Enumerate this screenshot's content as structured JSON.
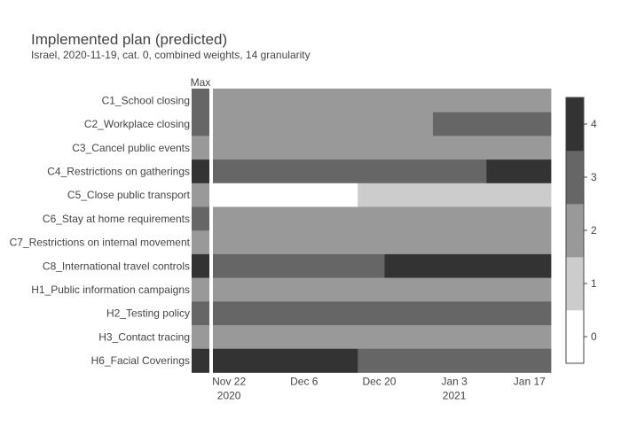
{
  "chart_data": {
    "type": "heatmap",
    "title": "Implemented plan (predicted)",
    "subtitle": "Israel, 2020-11-19, cat. 0, combined weights, 14 granularity",
    "max_column_label": "Max",
    "x_start": "2020-11-19",
    "x_end": "2021-01-21",
    "x_ticks": [
      {
        "date": "2020-11-22",
        "label": "Nov 22",
        "sublabel": "2020"
      },
      {
        "date": "2020-12-06",
        "label": "Dec 6",
        "sublabel": ""
      },
      {
        "date": "2020-12-20",
        "label": "Dec 20",
        "sublabel": ""
      },
      {
        "date": "2021-01-03",
        "label": "Jan 3",
        "sublabel": "2021"
      },
      {
        "date": "2021-01-17",
        "label": "Jan 17",
        "sublabel": ""
      }
    ],
    "colorscale": [
      {
        "value": 0,
        "color": "#ffffff"
      },
      {
        "value": 1,
        "color": "#cccccc"
      },
      {
        "value": 2,
        "color": "#999999"
      },
      {
        "value": 3,
        "color": "#666666"
      },
      {
        "value": 4,
        "color": "#333333"
      }
    ],
    "colorbar_ticks": [
      0,
      1,
      2,
      3,
      4
    ],
    "grid": false,
    "rows": [
      {
        "name": "C1_School closing",
        "max": 3,
        "segments": [
          {
            "start": "2020-11-19",
            "end": "2021-01-21",
            "value": 2
          }
        ]
      },
      {
        "name": "C2_Workplace closing",
        "max": 3,
        "segments": [
          {
            "start": "2020-11-19",
            "end": "2020-12-30",
            "value": 2
          },
          {
            "start": "2020-12-30",
            "end": "2021-01-21",
            "value": 3
          }
        ]
      },
      {
        "name": "C3_Cancel public events",
        "max": 2,
        "segments": [
          {
            "start": "2020-11-19",
            "end": "2021-01-21",
            "value": 2
          }
        ]
      },
      {
        "name": "C4_Restrictions on gatherings",
        "max": 4,
        "segments": [
          {
            "start": "2020-11-19",
            "end": "2021-01-09",
            "value": 3
          },
          {
            "start": "2021-01-09",
            "end": "2021-01-21",
            "value": 4
          }
        ]
      },
      {
        "name": "C5_Close public transport",
        "max": 2,
        "segments": [
          {
            "start": "2020-11-19",
            "end": "2020-12-16",
            "value": 0
          },
          {
            "start": "2020-12-16",
            "end": "2021-01-21",
            "value": 1
          }
        ]
      },
      {
        "name": "C6_Stay at home requirements",
        "max": 3,
        "segments": [
          {
            "start": "2020-11-19",
            "end": "2021-01-21",
            "value": 2
          }
        ]
      },
      {
        "name": "C7_Restrictions on internal movement",
        "max": 2,
        "segments": [
          {
            "start": "2020-11-19",
            "end": "2021-01-21",
            "value": 2
          }
        ]
      },
      {
        "name": "C8_International travel controls",
        "max": 4,
        "segments": [
          {
            "start": "2020-11-19",
            "end": "2020-12-21",
            "value": 3
          },
          {
            "start": "2020-12-21",
            "end": "2021-01-21",
            "value": 4
          }
        ]
      },
      {
        "name": "H1_Public information campaigns",
        "max": 2,
        "segments": [
          {
            "start": "2020-11-19",
            "end": "2021-01-21",
            "value": 2
          }
        ]
      },
      {
        "name": "H2_Testing policy",
        "max": 3,
        "segments": [
          {
            "start": "2020-11-19",
            "end": "2021-01-21",
            "value": 3
          }
        ]
      },
      {
        "name": "H3_Contact tracing",
        "max": 2,
        "segments": [
          {
            "start": "2020-11-19",
            "end": "2021-01-21",
            "value": 2
          }
        ]
      },
      {
        "name": "H6_Facial Coverings",
        "max": 4,
        "segments": [
          {
            "start": "2020-11-19",
            "end": "2020-12-16",
            "value": 4
          },
          {
            "start": "2020-12-16",
            "end": "2021-01-21",
            "value": 3
          }
        ]
      }
    ]
  }
}
